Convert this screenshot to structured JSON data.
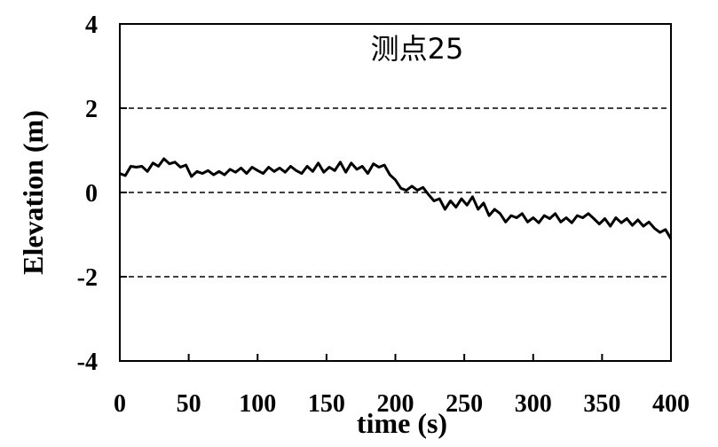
{
  "chart_data": {
    "type": "line",
    "title": "测点25",
    "xlabel": "time (s)",
    "ylabel": "Elevation (m)",
    "xlim": [
      0,
      400
    ],
    "ylim": [
      -4,
      4
    ],
    "x_ticks": [
      0,
      50,
      100,
      150,
      200,
      250,
      300,
      350,
      400
    ],
    "y_ticks": [
      -4,
      -2,
      0,
      2,
      4
    ],
    "x_tick_labels": [
      "0",
      "50",
      "100",
      "150",
      "200",
      "250",
      "300",
      "350",
      "400"
    ],
    "y_tick_labels": [
      "-4",
      "-2",
      "0",
      "2",
      "4"
    ],
    "grid": {
      "horizontal_dashed_at": [
        -2,
        0,
        2
      ]
    },
    "series": [
      {
        "color": "#000000",
        "x": [
          0,
          4,
          8,
          12,
          16,
          20,
          24,
          28,
          32,
          36,
          40,
          44,
          48,
          52,
          56,
          60,
          64,
          68,
          72,
          76,
          80,
          84,
          88,
          92,
          96,
          100,
          104,
          108,
          112,
          116,
          120,
          124,
          128,
          132,
          136,
          140,
          144,
          148,
          152,
          156,
          160,
          164,
          168,
          172,
          176,
          180,
          184,
          188,
          192,
          196,
          200,
          204,
          208,
          212,
          216,
          220,
          224,
          228,
          232,
          236,
          240,
          244,
          248,
          252,
          256,
          260,
          264,
          268,
          272,
          276,
          280,
          284,
          288,
          292,
          296,
          300,
          304,
          308,
          312,
          316,
          320,
          324,
          328,
          332,
          336,
          340,
          344,
          348,
          352,
          356,
          360,
          364,
          368,
          372,
          376,
          380,
          384,
          388,
          392,
          396,
          400
        ],
        "y": [
          0.45,
          0.4,
          0.62,
          0.6,
          0.62,
          0.5,
          0.7,
          0.62,
          0.8,
          0.68,
          0.72,
          0.6,
          0.65,
          0.38,
          0.5,
          0.45,
          0.52,
          0.42,
          0.5,
          0.42,
          0.55,
          0.48,
          0.58,
          0.45,
          0.6,
          0.52,
          0.45,
          0.6,
          0.5,
          0.58,
          0.48,
          0.62,
          0.52,
          0.45,
          0.62,
          0.5,
          0.7,
          0.48,
          0.6,
          0.52,
          0.72,
          0.48,
          0.7,
          0.55,
          0.62,
          0.45,
          0.68,
          0.6,
          0.65,
          0.42,
          0.3,
          0.1,
          0.05,
          0.15,
          0.05,
          0.12,
          -0.05,
          -0.2,
          -0.15,
          -0.4,
          -0.2,
          -0.35,
          -0.15,
          -0.3,
          -0.1,
          -0.4,
          -0.25,
          -0.55,
          -0.4,
          -0.5,
          -0.7,
          -0.55,
          -0.6,
          -0.5,
          -0.7,
          -0.6,
          -0.72,
          -0.55,
          -0.62,
          -0.5,
          -0.7,
          -0.6,
          -0.72,
          -0.55,
          -0.6,
          -0.5,
          -0.62,
          -0.75,
          -0.62,
          -0.8,
          -0.6,
          -0.72,
          -0.62,
          -0.78,
          -0.65,
          -0.8,
          -0.7,
          -0.85,
          -0.95,
          -0.88,
          -1.1
        ]
      }
    ]
  }
}
